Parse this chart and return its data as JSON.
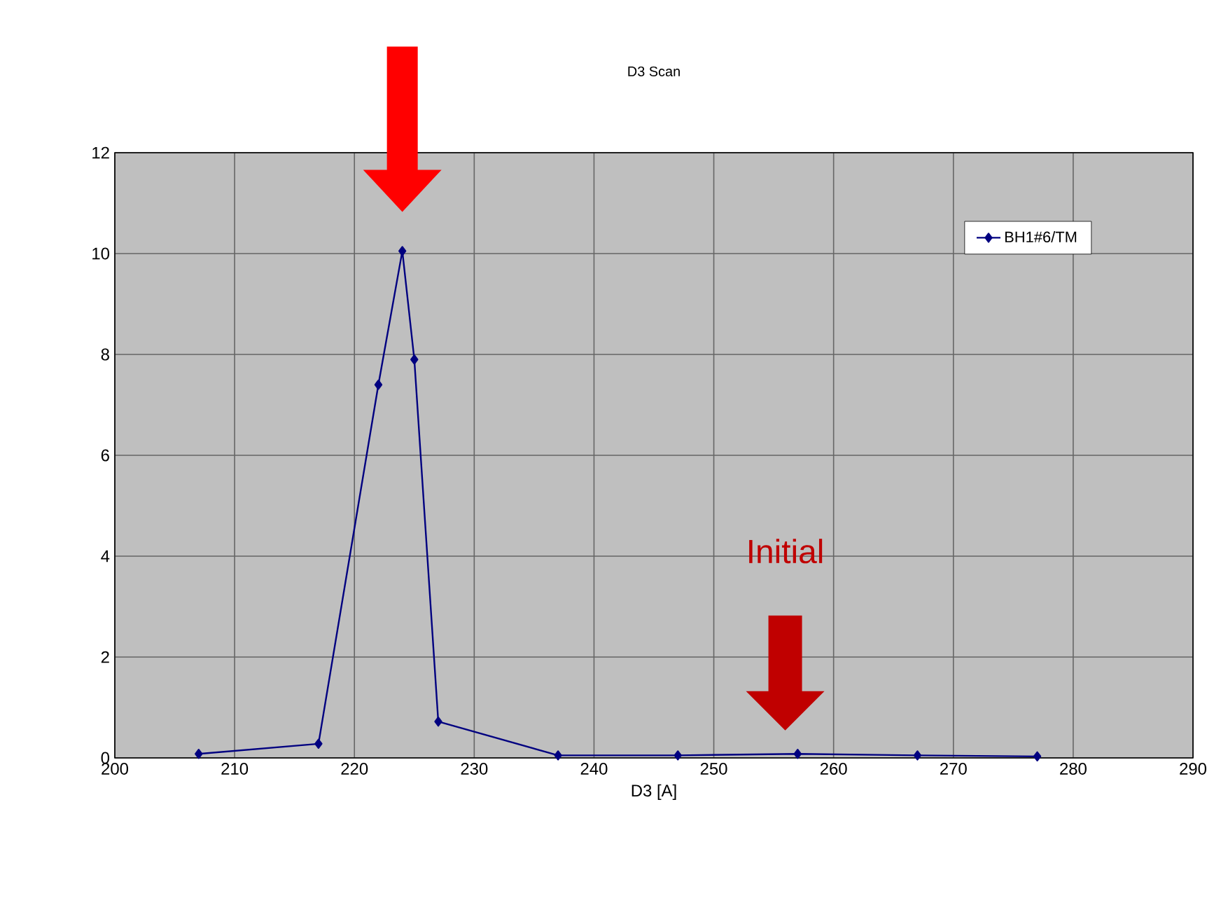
{
  "chart_data": {
    "type": "line",
    "title": "D3 Scan",
    "xlabel": "D3 [A]",
    "x": [
      207,
      217,
      222,
      224,
      225,
      227,
      237,
      247,
      257,
      267,
      277
    ],
    "series": [
      {
        "name": "BH1#6/TM",
        "color": "#000080",
        "values": [
          0.08,
          0.28,
          7.4,
          10.05,
          7.9,
          0.72,
          0.05,
          0.05,
          0.08,
          0.05,
          0.03
        ]
      }
    ],
    "xlim": [
      200,
      290
    ],
    "xticks": [
      200,
      210,
      220,
      230,
      240,
      250,
      260,
      270,
      280,
      290
    ],
    "ylim": [
      0,
      12
    ],
    "yticks": [
      0,
      2,
      4,
      6,
      8,
      10,
      12
    ],
    "grid": true,
    "legend": "top right",
    "marker": "diamond",
    "line_style": "solid",
    "annotations": [
      "Initial"
    ]
  }
}
